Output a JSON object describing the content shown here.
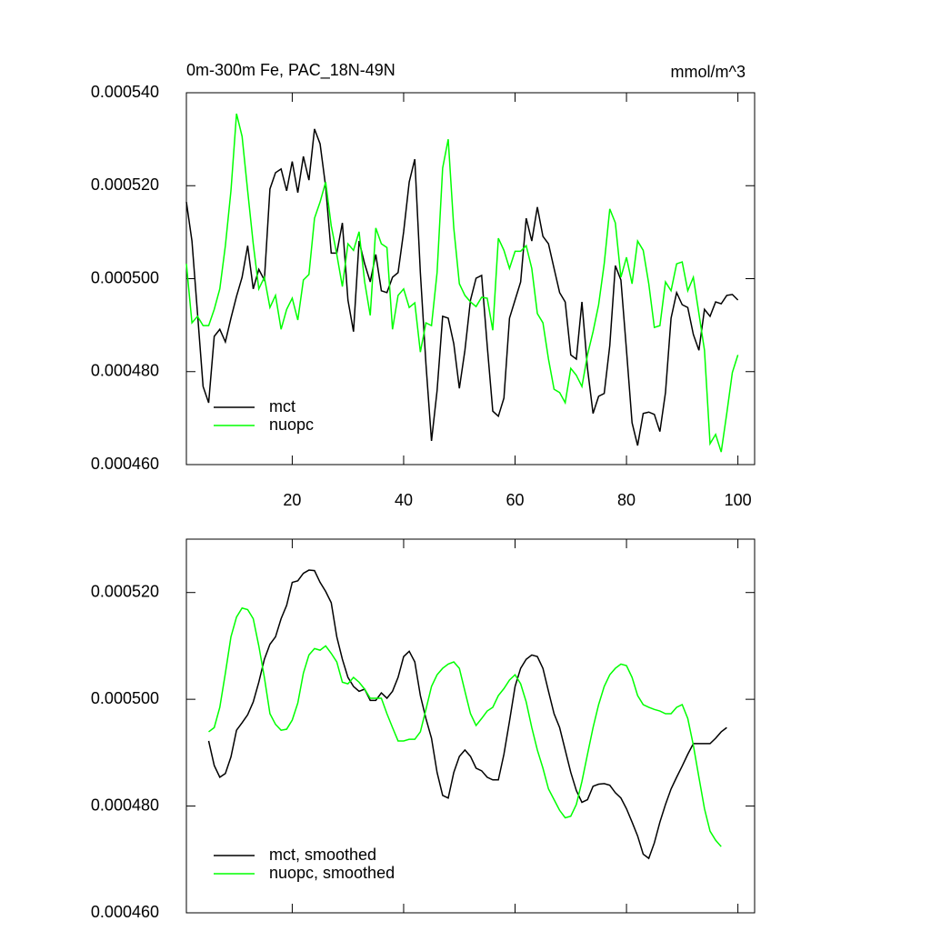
{
  "chart_data": [
    {
      "type": "line",
      "title": "0m-300m Fe, PAC_18N-49N",
      "units": "mmol/m^3",
      "xlim": [
        1,
        103
      ],
      "xticks": [
        20,
        40,
        60,
        80,
        100
      ],
      "xtick_labels": true,
      "ylim": [
        0.00046,
        0.00054
      ],
      "yticks": [
        {
          "value": 0.00046,
          "label": "0.000460"
        },
        {
          "value": 0.00048,
          "label": "0.000480"
        },
        {
          "value": 0.0005,
          "label": "0.000500"
        },
        {
          "value": 0.00052,
          "label": "0.000520"
        },
        {
          "value": 0.00054,
          "label": "0.000540"
        }
      ],
      "legend": "lower left",
      "x": [
        1,
        2,
        3,
        4,
        5,
        6,
        7,
        8,
        9,
        10,
        11,
        12,
        13,
        14,
        15,
        16,
        17,
        18,
        19,
        20,
        21,
        22,
        23,
        24,
        25,
        26,
        27,
        28,
        29,
        30,
        31,
        32,
        33,
        34,
        35,
        36,
        37,
        38,
        39,
        40,
        41,
        42,
        43,
        44,
        45,
        46,
        47,
        48,
        49,
        50,
        51,
        52,
        53,
        54,
        55,
        56,
        57,
        58,
        59,
        60,
        61,
        62,
        63,
        64,
        65,
        66,
        67,
        68,
        69,
        70,
        71,
        72,
        73,
        74,
        75,
        76,
        77,
        78,
        79,
        80,
        81,
        82,
        83,
        84,
        85,
        86,
        87,
        88,
        89,
        90,
        91,
        92,
        93,
        94,
        95,
        96,
        97,
        98,
        99,
        100
      ],
      "series": [
        {
          "name": "mct",
          "color": "#000000",
          "values": [
            0.0005165,
            0.0005081,
            0.0004925,
            0.0004768,
            0.0004733,
            0.0004876,
            0.0004891,
            0.0004864,
            0.0004915,
            0.0004962,
            0.0005003,
            0.0005071,
            0.0004978,
            0.000502,
            0.0004997,
            0.0005193,
            0.0005228,
            0.0005236,
            0.0005189,
            0.0005252,
            0.0005185,
            0.0005263,
            0.0005212,
            0.0005322,
            0.000529,
            0.0005198,
            0.0005055,
            0.0005055,
            0.000512,
            0.0004954,
            0.0004886,
            0.0005081,
            0.0005032,
            0.0004993,
            0.0005052,
            0.0004974,
            0.000497,
            0.0005003,
            0.0005013,
            0.0005101,
            0.0005208,
            0.0005257,
            0.0005013,
            0.0004817,
            0.0004651,
            0.0004759,
            0.0004919,
            0.0004915,
            0.000486,
            0.0004764,
            0.0004846,
            0.0004954,
            0.0005001,
            0.0005007,
            0.0004856,
            0.0004715,
            0.0004704,
            0.0004743,
            0.0004915,
            0.0004954,
            0.0004993,
            0.000513,
            0.0005081,
            0.0005154,
            0.0005091,
            0.0005075,
            0.0005022,
            0.000497,
            0.000495,
            0.0004836,
            0.0004827,
            0.000495,
            0.0004807,
            0.000471,
            0.0004747,
            0.0004753,
            0.0004856,
            0.0005028,
            0.0004997,
            0.0004846,
            0.000469,
            0.0004641,
            0.000471,
            0.0004713,
            0.0004708,
            0.0004671,
            0.0004755,
            0.0004915,
            0.000497,
            0.0004944,
            0.0004938,
            0.000488,
            0.0004846,
            0.0004934,
            0.0004919,
            0.000495,
            0.0004946,
            0.0004964,
            0.0004966,
            0.0004954
          ]
        },
        {
          "name": "nuopc",
          "color": "#00ff00",
          "values": [
            0.0005032,
            0.0004905,
            0.0004919,
            0.0004899,
            0.0004899,
            0.0004934,
            0.0004978,
            0.0005071,
            0.0005189,
            0.0005355,
            0.0005306,
            0.0005189,
            0.0005075,
            0.0004978,
            0.0005003,
            0.0004938,
            0.0004964,
            0.0004891,
            0.0004934,
            0.0004958,
            0.0004911,
            0.0004997,
            0.0005009,
            0.000513,
            0.0005165,
            0.0005208,
            0.0005114,
            0.0005052,
            0.0004983,
            0.0005075,
            0.0005061,
            0.0005101,
            0.0004993,
            0.0004921,
            0.0005109,
            0.0005075,
            0.0005067,
            0.0004891,
            0.0004964,
            0.0004978,
            0.0004938,
            0.0004948,
            0.0004842,
            0.0004905,
            0.0004899,
            0.0005013,
            0.0005238,
            0.00053,
            0.0005109,
            0.0004989,
            0.0004964,
            0.000495,
            0.000494,
            0.000496,
            0.0004958,
            0.0004889,
            0.0005087,
            0.0005061,
            0.0005022,
            0.0005059,
            0.0005059,
            0.0005071,
            0.0005022,
            0.0004925,
            0.0004905,
            0.0004827,
            0.0004762,
            0.0004755,
            0.0004733,
            0.0004807,
            0.0004792,
            0.0004768,
            0.0004836,
            0.0004886,
            0.0004944,
            0.0005032,
            0.000515,
            0.000512,
            0.0005003,
            0.0005046,
            0.0004989,
            0.0005081,
            0.0005061,
            0.0004989,
            0.0004895,
            0.0004899,
            0.0004993,
            0.0004974,
            0.0005032,
            0.0005036,
            0.0004974,
            0.0005003,
            0.0004925,
            0.0004846,
            0.0004645,
            0.0004665,
            0.0004627,
            0.000471,
            0.0004798,
            0.0004836
          ]
        }
      ]
    },
    {
      "type": "line",
      "xlim": [
        1,
        103
      ],
      "xticks": [
        20,
        40,
        60,
        80,
        100
      ],
      "xtick_labels": false,
      "ylim": [
        0.00046,
        0.00053
      ],
      "yticks": [
        {
          "value": 0.00046,
          "label": "0.000460"
        },
        {
          "value": 0.00048,
          "label": "0.000480"
        },
        {
          "value": 0.0005,
          "label": "0.000500"
        },
        {
          "value": 0.00052,
          "label": "0.000520"
        }
      ],
      "legend": "lower left",
      "series": [
        {
          "name": "mct, smoothed",
          "color": "#000000",
          "x": [
            5,
            6,
            7,
            8,
            9,
            10,
            11,
            12,
            13,
            14,
            15,
            16,
            17,
            18,
            19,
            20,
            21,
            22,
            23,
            24,
            25,
            26,
            27,
            28,
            29,
            30,
            31,
            32,
            33,
            34,
            35,
            36,
            37,
            38,
            39,
            40,
            41,
            42,
            43,
            44,
            45,
            46,
            47,
            48,
            49,
            50,
            51,
            52,
            53,
            54,
            55,
            56,
            57,
            58,
            59,
            60,
            61,
            62,
            63,
            64,
            65,
            66,
            67,
            68,
            69,
            70,
            71,
            72,
            73,
            74,
            75,
            76,
            77,
            78,
            79,
            80,
            81,
            82,
            83,
            84,
            85,
            86,
            87,
            88,
            89,
            90,
            91,
            92,
            93,
            94,
            95,
            96,
            97,
            98
          ],
          "values": [
            0.0004922,
            0.0004876,
            0.0004854,
            0.0004861,
            0.0004892,
            0.0004942,
            0.0004956,
            0.0004971,
            0.0004995,
            0.0005032,
            0.0005075,
            0.0005103,
            0.0005117,
            0.0005151,
            0.0005176,
            0.0005219,
            0.0005222,
            0.0005236,
            0.0005242,
            0.0005241,
            0.0005219,
            0.0005202,
            0.0005181,
            0.0005117,
            0.0005075,
            0.0005041,
            0.0005024,
            0.0005015,
            0.0005019,
            0.0004998,
            0.0004998,
            0.0005012,
            0.0005002,
            0.0005015,
            0.0005041,
            0.000508,
            0.000509,
            0.000507,
            0.0005007,
            0.0004964,
            0.0004927,
            0.0004863,
            0.000482,
            0.0004815,
            0.0004863,
            0.0004893,
            0.0004905,
            0.0004893,
            0.0004871,
            0.0004866,
            0.0004854,
            0.0004849,
            0.0004849,
            0.0004897,
            0.0004959,
            0.0005024,
            0.0005058,
            0.0005075,
            0.0005083,
            0.000508,
            0.0005058,
            0.0005015,
            0.0004973,
            0.0004947,
            0.0004905,
            0.0004863,
            0.0004829,
            0.0004807,
            0.0004812,
            0.0004837,
            0.0004841,
            0.0004842,
            0.0004839,
            0.0004825,
            0.0004815,
            0.0004795,
            0.000477,
            0.0004744,
            0.000471,
            0.0004702,
            0.0004731,
            0.000477,
            0.0004803,
            0.0004832,
            0.0004854,
            0.0004875,
            0.0004897,
            0.0004917,
            0.0004917,
            0.0004917,
            0.0004917,
            0.0004927,
            0.0004939,
            0.0004947
          ]
        },
        {
          "name": "nuopc, smoothed",
          "color": "#00ff00",
          "x": [
            5,
            6,
            7,
            8,
            9,
            10,
            11,
            12,
            13,
            14,
            15,
            16,
            17,
            18,
            19,
            20,
            21,
            22,
            23,
            24,
            25,
            26,
            27,
            28,
            29,
            30,
            31,
            32,
            33,
            34,
            35,
            36,
            37,
            38,
            39,
            40,
            41,
            42,
            43,
            44,
            45,
            46,
            47,
            48,
            49,
            50,
            51,
            52,
            53,
            54,
            55,
            56,
            57,
            58,
            59,
            60,
            61,
            62,
            63,
            64,
            65,
            66,
            67,
            68,
            69,
            70,
            71,
            72,
            73,
            74,
            75,
            76,
            77,
            78,
            79,
            80,
            81,
            82,
            83,
            84,
            85,
            86,
            87,
            88,
            89,
            90,
            91,
            92,
            93,
            94,
            95,
            96,
            97
          ],
          "values": [
            0.0004939,
            0.0004947,
            0.0004985,
            0.0005049,
            0.0005117,
            0.0005154,
            0.0005171,
            0.0005168,
            0.0005151,
            0.00051,
            0.0005041,
            0.0004973,
            0.0004953,
            0.0004942,
            0.0004944,
            0.0004961,
            0.0004993,
            0.0005049,
            0.0005083,
            0.0005095,
            0.0005092,
            0.00051,
            0.0005086,
            0.000507,
            0.0005032,
            0.0005029,
            0.0005041,
            0.0005032,
            0.0005019,
            0.0005002,
            0.0005002,
            0.0005002,
            0.0004973,
            0.0004947,
            0.0004922,
            0.0004922,
            0.0004925,
            0.0004925,
            0.0004939,
            0.0004981,
            0.0005024,
            0.0005046,
            0.0005058,
            0.0005066,
            0.000507,
            0.0005058,
            0.0005015,
            0.0004973,
            0.0004951,
            0.0004964,
            0.0004978,
            0.0004985,
            0.0005007,
            0.000502,
            0.0005036,
            0.0005046,
            0.0005029,
            0.0004995,
            0.0004947,
            0.0004905,
            0.0004871,
            0.0004832,
            0.0004812,
            0.0004792,
            0.0004778,
            0.0004781,
            0.0004803,
            0.0004846,
            0.0004897,
            0.0004947,
            0.000499,
            0.0005024,
            0.0005046,
            0.0005058,
            0.0005066,
            0.0005063,
            0.0005041,
            0.0005007,
            0.000499,
            0.0004985,
            0.0004981,
            0.0004978,
            0.0004973,
            0.0004973,
            0.0004985,
            0.000499,
            0.0004964,
            0.0004914,
            0.0004854,
            0.0004795,
            0.0004753,
            0.0004736,
            0.0004724
          ]
        }
      ]
    }
  ]
}
